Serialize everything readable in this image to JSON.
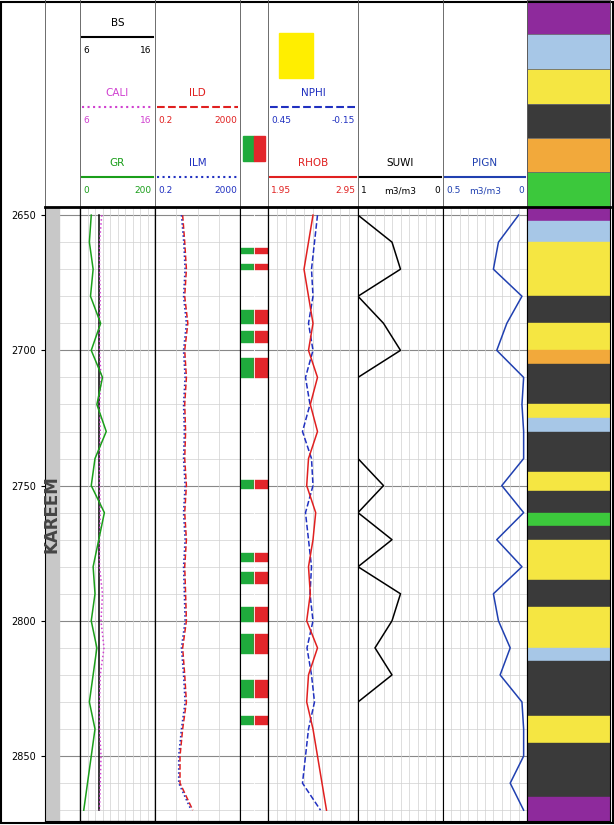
{
  "chart_data": {
    "type": "well_log",
    "ylim": [
      2874,
      2647
    ],
    "yticks": [
      2650,
      2700,
      2750,
      2800,
      2850
    ],
    "grid": true,
    "tick_labels": "y",
    "depth": [
      2650,
      2660,
      2670,
      2680,
      2690,
      2700,
      2710,
      2720,
      2730,
      2740,
      2750,
      2760,
      2770,
      2780,
      2790,
      2800,
      2810,
      2820,
      2830,
      2840,
      2850,
      2860,
      2870
    ],
    "zone": {
      "name": "KAREEM",
      "top": 2647,
      "bottom": 2874
    },
    "tracks": [
      {
        "type": "depth"
      },
      {
        "type": "curves",
        "curves": [
          {
            "name": "BS",
            "color": "#000000",
            "line_style": "solid",
            "xlim": [
              6,
              16
            ],
            "values": [
              8.5,
              8.5,
              8.5,
              8.5,
              8.5,
              8.5,
              8.5,
              8.5,
              8.5,
              8.5,
              8.5,
              8.5,
              8.5,
              8.5,
              8.5,
              8.5,
              8.5,
              8.5,
              8.5,
              8.5,
              8.5,
              8.5,
              8.5
            ]
          },
          {
            "name": "CALI",
            "color": "#d040d0",
            "line_style": "dotted",
            "xlim": [
              6,
              16
            ],
            "values": [
              8.9,
              8.6,
              8.6,
              8.7,
              8.6,
              8.6,
              8.8,
              8.6,
              8.7,
              8.6,
              8.6,
              8.7,
              8.6,
              8.6,
              9.0,
              8.8,
              9.2,
              8.7,
              8.6,
              8.6,
              8.8,
              8.7,
              8.6
            ]
          },
          {
            "name": "GR",
            "color": "#1a9e1a",
            "line_style": "solid",
            "xlim": [
              0,
              200
            ],
            "values": [
              30,
              25,
              35,
              28,
              55,
              30,
              60,
              45,
              70,
              40,
              30,
              65,
              50,
              35,
              40,
              30,
              45,
              35,
              25,
              40,
              30,
              20,
              10
            ]
          }
        ]
      },
      {
        "type": "curves",
        "log": true,
        "curves": [
          {
            "name": "ILD",
            "color": "#e02020",
            "line_style": "dashed",
            "xlim": [
              0.2,
              2000
            ],
            "values": [
              4,
              5,
              6,
              5,
              7,
              5,
              6,
              5,
              5.5,
              5,
              6,
              5,
              6,
              5,
              5.5,
              6,
              4,
              5,
              6,
              4,
              3,
              3,
              12
            ]
          },
          {
            "name": "ILM",
            "color": "#2030c0",
            "line_style": "dotted",
            "xlim": [
              0.2,
              2000
            ],
            "values": [
              3.5,
              4.5,
              5.2,
              4.4,
              6,
              4.4,
              5.2,
              4.4,
              4.8,
              4.4,
              5.2,
              4.4,
              5.2,
              4.4,
              4.8,
              5.2,
              3.5,
              4.4,
              5.2,
              3.5,
              2.6,
              2.6,
              10
            ]
          }
        ]
      },
      {
        "type": "flags",
        "colors": [
          "#1faa3c",
          "#e3262b"
        ],
        "intervals": [
          [
            2662,
            2664
          ],
          [
            2668,
            2670
          ],
          [
            2685,
            2690
          ],
          [
            2693,
            2697
          ],
          [
            2703,
            2710
          ],
          [
            2748,
            2751
          ],
          [
            2775,
            2778
          ],
          [
            2782,
            2786
          ],
          [
            2795,
            2800
          ],
          [
            2805,
            2812
          ],
          [
            2822,
            2828
          ],
          [
            2835,
            2838
          ]
        ]
      },
      {
        "type": "curves",
        "curves": [
          {
            "name": "NPHI",
            "color": "#2030c0",
            "line_style": "dashed",
            "xlim": [
              0.45,
              -0.15
            ],
            "values": [
              0.12,
              0.14,
              0.16,
              0.15,
              0.18,
              0.15,
              0.2,
              0.17,
              0.22,
              0.16,
              0.15,
              0.2,
              0.18,
              0.16,
              0.17,
              0.15,
              0.19,
              0.16,
              0.14,
              0.18,
              0.2,
              0.22,
              0.1
            ]
          },
          {
            "name": "RHOB",
            "color": "#e02020",
            "line_style": "solid",
            "xlim": [
              1.95,
              2.95
            ],
            "values": [
              2.45,
              2.4,
              2.35,
              2.4,
              2.45,
              2.4,
              2.5,
              2.42,
              2.5,
              2.4,
              2.38,
              2.48,
              2.45,
              2.4,
              2.42,
              2.38,
              2.5,
              2.4,
              2.38,
              2.45,
              2.5,
              2.55,
              2.6
            ]
          }
        ]
      },
      {
        "type": "curves",
        "curves": [
          {
            "name": "SUWI",
            "color": "#000000",
            "line_style": "solid",
            "xlim": [
              1,
              0
            ],
            "unit": "m3/m3",
            "values": [
              1,
              0.6,
              0.5,
              1,
              0.7,
              0.5,
              1,
              1,
              1,
              1,
              0.7,
              1,
              0.6,
              1,
              0.5,
              0.6,
              0.8,
              0.6,
              1,
              1,
              1,
              1,
              1
            ]
          }
        ]
      },
      {
        "type": "curves",
        "curves": [
          {
            "name": "PIGN",
            "color": "#2040b0",
            "line_style": "solid",
            "xlim": [
              0.5,
              0
            ],
            "unit": "m3/m3",
            "values": [
              0.05,
              0.17,
              0.2,
              0.03,
              0.12,
              0.18,
              0.02,
              0.03,
              0.02,
              0.02,
              0.15,
              0.02,
              0.18,
              0.03,
              0.2,
              0.17,
              0.1,
              0.16,
              0.03,
              0.02,
              0.02,
              0.1,
              0.02
            ]
          }
        ]
      },
      {
        "type": "lithology",
        "intervals": [
          {
            "top": 2647,
            "bottom": 2652,
            "color": "#8e2a9c"
          },
          {
            "top": 2652,
            "bottom": 2660,
            "color": "#a7c7e7"
          },
          {
            "top": 2660,
            "bottom": 2680,
            "color": "#f5e642"
          },
          {
            "top": 2680,
            "bottom": 2690,
            "color": "#3a3a3a"
          },
          {
            "top": 2690,
            "bottom": 2700,
            "color": "#f5e642"
          },
          {
            "top": 2700,
            "bottom": 2705,
            "color": "#f2a93b"
          },
          {
            "top": 2705,
            "bottom": 2720,
            "color": "#3a3a3a"
          },
          {
            "top": 2720,
            "bottom": 2725,
            "color": "#f5e642"
          },
          {
            "top": 2725,
            "bottom": 2730,
            "color": "#a7c7e7"
          },
          {
            "top": 2730,
            "bottom": 2745,
            "color": "#3a3a3a"
          },
          {
            "top": 2745,
            "bottom": 2752,
            "color": "#f5e642"
          },
          {
            "top": 2752,
            "bottom": 2760,
            "color": "#3a3a3a"
          },
          {
            "top": 2760,
            "bottom": 2765,
            "color": "#3cc83c"
          },
          {
            "top": 2765,
            "bottom": 2770,
            "color": "#3a3a3a"
          },
          {
            "top": 2770,
            "bottom": 2785,
            "color": "#f5e642"
          },
          {
            "top": 2785,
            "bottom": 2795,
            "color": "#3a3a3a"
          },
          {
            "top": 2795,
            "bottom": 2810,
            "color": "#f5e642"
          },
          {
            "top": 2810,
            "bottom": 2815,
            "color": "#a7c7e7"
          },
          {
            "top": 2815,
            "bottom": 2835,
            "color": "#3a3a3a"
          },
          {
            "top": 2835,
            "bottom": 2845,
            "color": "#f5e642"
          },
          {
            "top": 2845,
            "bottom": 2865,
            "color": "#3a3a3a"
          },
          {
            "top": 2865,
            "bottom": 2874,
            "color": "#8e2a9c"
          }
        ]
      }
    ]
  }
}
